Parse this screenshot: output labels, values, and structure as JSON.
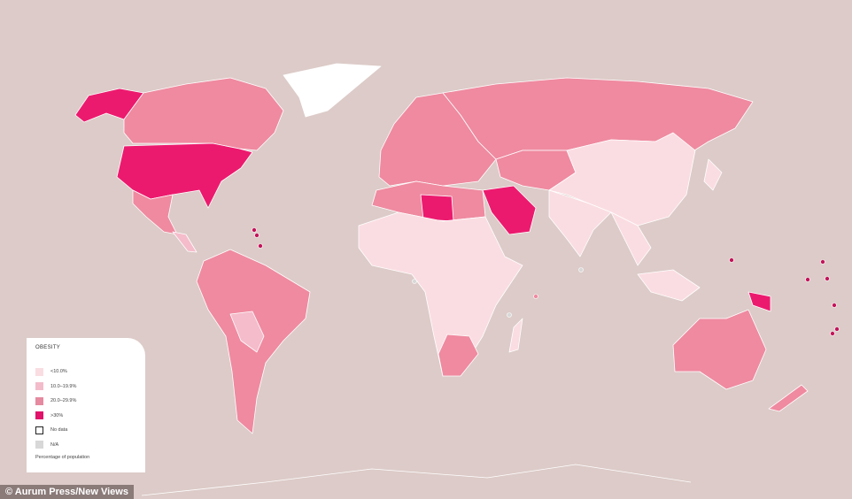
{
  "legend": {
    "title": "OBESITY",
    "items": [
      {
        "label": "<10.0%",
        "color": "#f9dde2"
      },
      {
        "label": "10.0–19.9%",
        "color": "#f3bccb"
      },
      {
        "label": "20.0–29.9%",
        "color": "#e58aa0"
      },
      {
        "label": ">30%",
        "color": "#e0126a"
      },
      {
        "label": "No data",
        "color": "#ffffff"
      },
      {
        "label": "N/A",
        "color": "#d8d8d8"
      }
    ],
    "note": "Percentage of population"
  },
  "caption": "© Aurum Press/New Views",
  "colors": {
    "background": "#dccbc8",
    "lt10": "#fadde2",
    "c10_20": "#f5bccb",
    "c20_30": "#ef8aa0",
    "gt30": "#ec1a6e",
    "nodata": "#ffffff"
  }
}
